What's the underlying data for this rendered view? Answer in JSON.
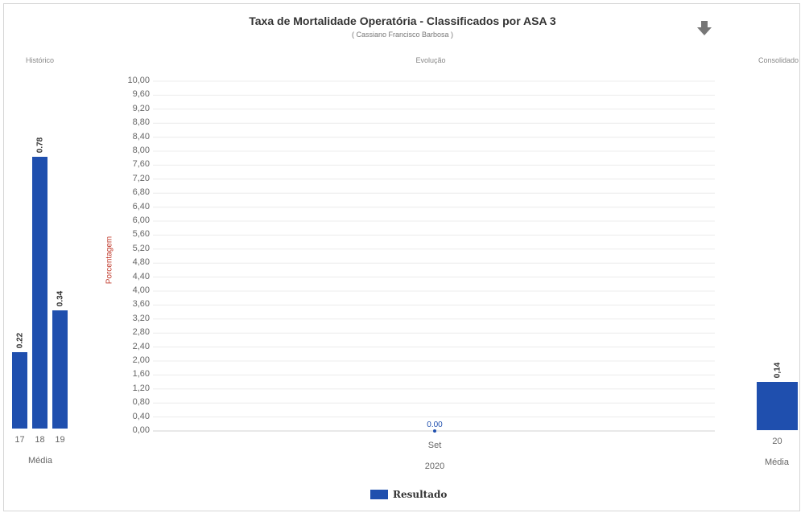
{
  "chart_data": [
    {
      "type": "bar",
      "section_label": "Histórico",
      "categories": [
        "17",
        "18",
        "19"
      ],
      "group_label": "Média",
      "values": [
        0.22,
        0.78,
        0.34
      ],
      "value_labels": [
        "0.22",
        "0.78",
        "0.34"
      ],
      "ylim": [
        0,
        1.0
      ],
      "color": "#1f4fae"
    },
    {
      "type": "line",
      "title": "Taxa de Mortalidade Operatória - Classificados por ASA 3",
      "subtitle": "( Cassiano Francisco Barbosa )",
      "section_label": "Evolução",
      "ylabel": "Porcentagem",
      "ylim": [
        0,
        10
      ],
      "yticks": [
        "10,00",
        "9,60",
        "9,20",
        "8,80",
        "8,40",
        "8,00",
        "7,60",
        "7,20",
        "6,80",
        "6,40",
        "6,00",
        "5,60",
        "5,20",
        "4,80",
        "4,40",
        "4,00",
        "3,60",
        "3,20",
        "2,80",
        "2,40",
        "2,00",
        "1,60",
        "1,20",
        "0,80",
        "0,40",
        "0,00"
      ],
      "categories": [
        "Set"
      ],
      "category_group": "2020",
      "series": [
        {
          "name": "Resultado",
          "values": [
            0.0
          ],
          "value_labels": [
            "0.00"
          ]
        }
      ],
      "grid": true,
      "legend": "bottom-center",
      "color": "#1f4fae"
    },
    {
      "type": "bar",
      "section_label": "Consolidado",
      "categories": [
        "20"
      ],
      "group_label": "Média",
      "values": [
        0.14
      ],
      "value_labels": [
        "0,14"
      ],
      "ylim": [
        0,
        1.0
      ],
      "color": "#1f4fae"
    }
  ],
  "download_icon": "download-arrow-icon"
}
